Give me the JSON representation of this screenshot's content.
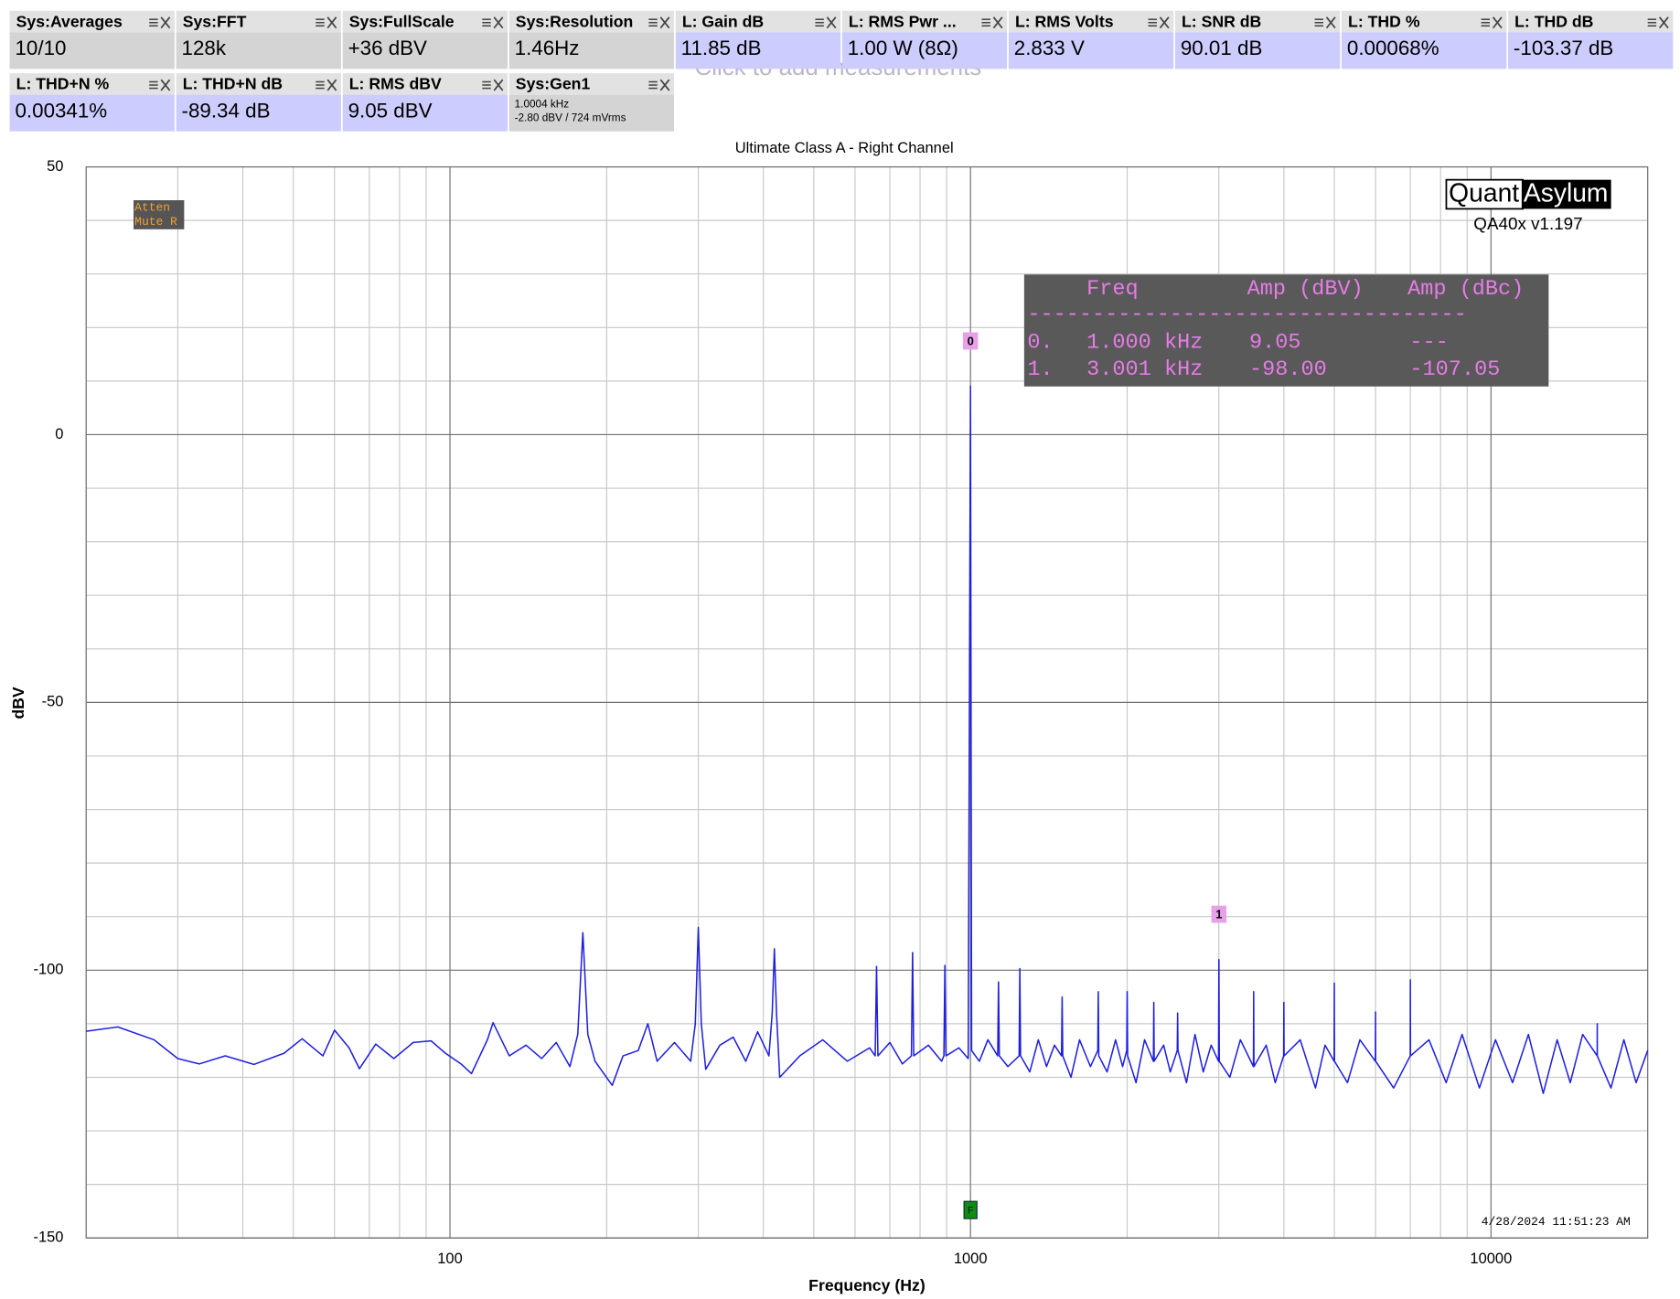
{
  "measurements": [
    {
      "name": "Sys:Averages",
      "value": "10/10",
      "color": "#d4d4d4"
    },
    {
      "name": "Sys:FFT",
      "value": "128k",
      "color": "#d4d4d4"
    },
    {
      "name": "Sys:FullScale",
      "value": "+36 dBV",
      "color": "#d4d4d4"
    },
    {
      "name": "Sys:Resolution",
      "value": "1.46Hz",
      "color": "#d4d4d4"
    },
    {
      "name": "L: Gain dB",
      "value": "11.85 dB",
      "color": "#ccccff"
    },
    {
      "name": "L: RMS Pwr ...",
      "value": "1.00 W (8Ω)",
      "color": "#ccccff"
    },
    {
      "name": "L: RMS Volts",
      "value": "2.833 V",
      "color": "#ccccff"
    },
    {
      "name": "L: SNR dB",
      "value": "90.01 dB",
      "color": "#ccccff"
    },
    {
      "name": "L: THD %",
      "value": "0.00068%",
      "color": "#ccccff"
    },
    {
      "name": "L: THD dB",
      "value": "-103.37 dB",
      "color": "#ccccff"
    },
    {
      "name": "L: THD+N %",
      "value": "0.00341%",
      "color": "#ccccff"
    },
    {
      "name": "L: THD+N dB",
      "value": "-89.34 dB",
      "color": "#ccccff"
    },
    {
      "name": "L: RMS dBV",
      "value": "9.05 dBV",
      "color": "#ccccff"
    }
  ],
  "generator": {
    "name": "Sys:Gen1",
    "lines": [
      "1.0004 kHz",
      "-2.80 dBV  / 724 mVrms"
    ],
    "color": "#d4d4d4"
  },
  "hint": "Click to add measurements",
  "status": [
    "Atten",
    "Mute R"
  ],
  "logo": {
    "left": "Quant",
    "right": "Asylum",
    "version": "QA40x v1.197"
  },
  "timestamp": "4/28/2024 11:51:23 AM",
  "peak_table": {
    "headers": [
      "Freq",
      "Amp (dBV)",
      "Amp (dBc)"
    ],
    "separator": "----------------------------------",
    "rows": [
      [
        "0.",
        "1.000 kHz",
        "9.05",
        "---"
      ],
      [
        "1.",
        "3.001 kHz",
        "-98.00",
        "-107.05"
      ]
    ]
  },
  "chart_data": {
    "type": "line",
    "title": "Ultimate Class A - Right Channel",
    "x_label": "Frequency (Hz)",
    "y_label": "dBV",
    "log_x": true,
    "grid": true,
    "xlim": [
      20,
      20000
    ],
    "ylim": [
      -150,
      50
    ],
    "xticks": [
      100,
      1000,
      10000
    ],
    "yticks": [
      -150,
      -100,
      -50,
      0,
      50
    ],
    "minor_xticks": [
      20,
      30,
      40,
      50,
      60,
      70,
      80,
      90,
      200,
      300,
      400,
      500,
      600,
      700,
      800,
      900,
      2000,
      3000,
      4000,
      5000,
      6000,
      7000,
      8000,
      9000,
      20000
    ],
    "minor_yticks": [
      -140,
      -130,
      -120,
      -110,
      -90,
      -80,
      -70,
      -60,
      -40,
      -30,
      -20,
      -10,
      10,
      20,
      30,
      40
    ],
    "markers": [
      {
        "label": "0",
        "x": 1000,
        "value": 9.05
      },
      {
        "label": "1",
        "x": 3001,
        "value": -98.0
      }
    ],
    "cursor": {
      "label": "F",
      "x": 1000
    },
    "x": [
      20,
      23,
      27,
      30,
      33,
      37,
      42,
      48,
      52,
      57,
      60,
      64,
      67,
      72,
      78,
      85,
      92,
      98,
      105,
      110,
      118,
      121,
      130,
      140,
      150,
      160,
      170,
      176,
      180,
      184,
      190,
      205,
      215,
      230,
      240,
      250,
      270,
      290,
      296,
      300,
      304,
      310,
      330,
      350,
      370,
      390,
      410,
      416,
      420,
      424,
      430,
      470,
      520,
      580,
      640,
      656,
      660,
      664,
      700,
      740,
      770,
      774,
      778,
      830,
      880,
      889,
      893,
      897,
      950,
      990,
      1000,
      1005,
      1040,
      1080,
      1128,
      1132,
      1136,
      1180,
      1240,
      1244,
      1248,
      1300,
      1350,
      1400,
      1450,
      1496,
      1500,
      1504,
      1560,
      1620,
      1700,
      1756,
      1760,
      1764,
      1830,
      1900,
      1960,
      1996,
      2000,
      2004,
      2080,
      2160,
      2246,
      2250,
      2254,
      2350,
      2420,
      2496,
      2500,
      2504,
      2600,
      2700,
      2800,
      2900,
      2996,
      3001,
      3006,
      3150,
      3300,
      3496,
      3500,
      3504,
      3700,
      3850,
      3996,
      4000,
      4004,
      4300,
      4600,
      4800,
      4996,
      5000,
      5004,
      5300,
      5600,
      5996,
      6000,
      6004,
      6500,
      6996,
      7000,
      7004,
      7600,
      8200,
      8800,
      9500,
      10200,
      11000,
      11800,
      12600,
      13400,
      14200,
      15000,
      15996,
      16000,
      16004,
      17000,
      18000,
      19000,
      20000
    ],
    "series": [
      {
        "color": "#1f1fe0",
        "values": [
          -111.4,
          -110.6,
          -113,
          -116.5,
          -117.5,
          -116,
          -117.6,
          -115.5,
          -112.8,
          -116,
          -111.2,
          -114.5,
          -118.4,
          -113.8,
          -116.5,
          -113.5,
          -113.2,
          -115.5,
          -117.5,
          -119.3,
          -113,
          -109.8,
          -116,
          -114,
          -116.5,
          -113.5,
          -118,
          -112,
          -93,
          -112,
          -117,
          -121.5,
          -116,
          -115,
          -110,
          -117,
          -113.5,
          -117,
          -110,
          -92,
          -110,
          -118.5,
          -114,
          -112.5,
          -117,
          -111.5,
          -116,
          -108,
          -96,
          -108,
          -120,
          -116,
          -113,
          -117,
          -114.5,
          -116,
          -99.3,
          -116,
          -113.5,
          -117.5,
          -116,
          -96.7,
          -116,
          -114,
          -117,
          -116,
          -99.1,
          -116,
          -114.5,
          -116.5,
          9.05,
          -115,
          -117,
          -113,
          -116,
          -102.2,
          -116,
          -118,
          -116,
          -99.7,
          -116,
          -119,
          -113,
          -118,
          -114,
          -116,
          -105,
          -116,
          -120,
          -113,
          -118,
          -115,
          -104,
          -116,
          -119,
          -113,
          -118,
          -115,
          -104,
          -116,
          -121,
          -113,
          -117,
          -106,
          -117,
          -114,
          -119,
          -115,
          -108,
          -115,
          -121,
          -112,
          -119,
          -114,
          -117,
          -98,
          -117,
          -120,
          -113,
          -118,
          -104,
          -118,
          -114,
          -121,
          -116,
          -106,
          -116,
          -113,
          -122,
          -114,
          -117,
          -102.4,
          -117,
          -121,
          -113,
          -117,
          -107.8,
          -117,
          -122,
          -116,
          -101.8,
          -116,
          -113,
          -121,
          -112,
          -122,
          -113,
          -121,
          -112,
          -123,
          -113,
          -121,
          -112,
          -116,
          -110,
          -116,
          -122,
          -113,
          -121,
          -115
        ]
      }
    ]
  }
}
